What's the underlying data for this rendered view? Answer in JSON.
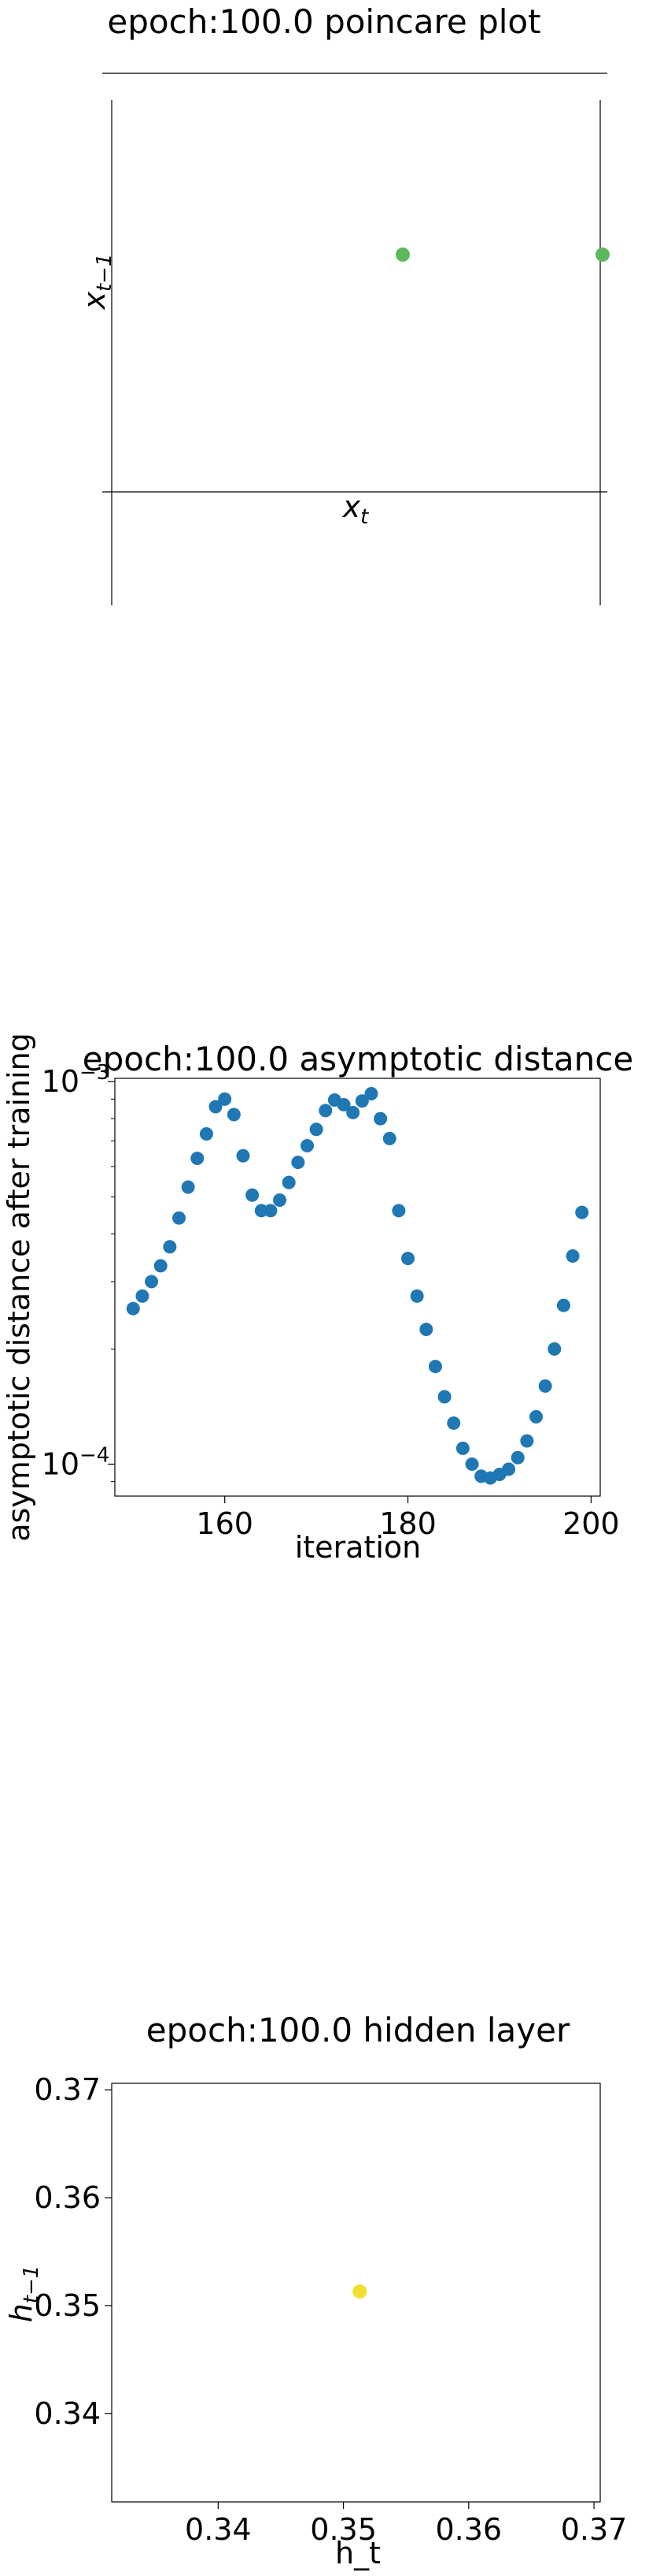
{
  "chart_data": [
    {
      "type": "scatter",
      "title": "epoch:100.0 poincare plot",
      "xlabel": "x_t",
      "ylabel": "x_{t−1}",
      "points": [
        {
          "color": "#5cb85c"
        },
        {
          "color": "#5cb85c"
        }
      ],
      "grid": false,
      "legend": "none"
    },
    {
      "type": "scatter",
      "title": "epoch:100.0 asymptotic distance",
      "xlabel": "iteration",
      "ylabel": "asymptotic distance after training",
      "yscale": "log",
      "xlim": [
        148,
        201
      ],
      "ylim": [
        8.25e-05,
        0.00102
      ],
      "x_ticks": [
        160,
        180,
        200
      ],
      "y_ticks": [
        {
          "value": 0.0001,
          "base": "10",
          "exp": "−4"
        },
        {
          "value": 0.001,
          "base": "10",
          "exp": "−3"
        }
      ],
      "color": "#1f77b4",
      "x": [
        150,
        151,
        152,
        153,
        154,
        155,
        156,
        157,
        158,
        159,
        160,
        161,
        162,
        163,
        164,
        165,
        166,
        167,
        168,
        169,
        170,
        171,
        172,
        173,
        174,
        175,
        176,
        177,
        178,
        179,
        180,
        181,
        182,
        183,
        184,
        185,
        186,
        187,
        188,
        189,
        190,
        191,
        192,
        193,
        194,
        195,
        196,
        197,
        198,
        199
      ],
      "y": [
        0.000255,
        0.000275,
        0.0003,
        0.00033,
        0.00037,
        0.00044,
        0.00053,
        0.00063,
        0.00073,
        0.00086,
        0.0009,
        0.00082,
        0.00064,
        0.000505,
        0.00046,
        0.00046,
        0.00049,
        0.000545,
        0.000615,
        0.00068,
        0.00075,
        0.00084,
        0.000895,
        0.00087,
        0.00083,
        0.00089,
        0.00093,
        0.0008,
        0.00071,
        0.00046,
        0.000345,
        0.000275,
        0.000225,
        0.00018,
        0.00015,
        0.000128,
        0.00011,
        0.0001,
        9.3e-05,
        9.2e-05,
        9.4e-05,
        9.7e-05,
        0.000104,
        0.000115,
        0.000133,
        0.00016,
        0.0002,
        0.00026,
        0.00035,
        0.000455
      ],
      "grid": false,
      "legend": "none"
    },
    {
      "type": "scatter",
      "title": "epoch:100.0 hidden layer",
      "xlabel": "h_t",
      "ylabel": "h_{t−1}",
      "xlim": [
        0.3315,
        0.3705
      ],
      "ylim": [
        0.3318,
        0.3706
      ],
      "x_ticks": [
        "0.34",
        "0.35",
        "0.36",
        "0.37"
      ],
      "y_ticks": [
        "0.34",
        "0.35",
        "0.36",
        "0.37"
      ],
      "points": [
        {
          "x": 0.3513,
          "y": 0.3513,
          "color": "#f0e130"
        }
      ],
      "grid": false,
      "legend": "none"
    }
  ]
}
